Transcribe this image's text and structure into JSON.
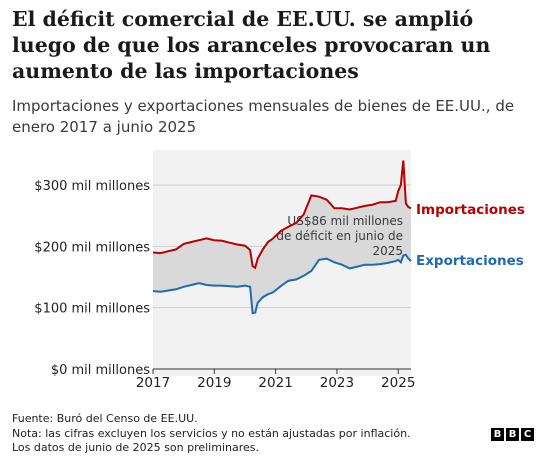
{
  "title": "El déficit comercial de EE.UU. se amplió luego de que los aranceles provocaran un aumento de las importaciones",
  "subtitle": "Importaciones y exportaciones mensuales de bienes de EE.UU., de enero 2017 a junio 2025",
  "footer": {
    "source": "Fuente: Buró del Censo de EE.UU.",
    "note": "Nota: las cifras excluyen los servicios y no están ajustadas por inflación.",
    "prelim": "Los datos de junio de 2025 son preliminares."
  },
  "brand": [
    "B",
    "B",
    "C"
  ],
  "chart_data": {
    "type": "line",
    "x_start": "2017-01",
    "x_end": "2025-06",
    "ylim": [
      0,
      350
    ],
    "yticks": [
      {
        "value": 0,
        "label": "$0 mil millones"
      },
      {
        "value": 100,
        "label": "$100 mil millones"
      },
      {
        "value": 200,
        "label": "$200 mil millones"
      },
      {
        "value": 300,
        "label": "$300 mil millones"
      }
    ],
    "xticks": [
      "2017",
      "2019",
      "2021",
      "2023",
      "2025"
    ],
    "series": [
      {
        "name": "Importaciones",
        "color": "#b80000",
        "x": [
          "2017-01",
          "2017-04",
          "2017-07",
          "2017-10",
          "2018-01",
          "2018-04",
          "2018-07",
          "2018-10",
          "2019-01",
          "2019-04",
          "2019-07",
          "2019-10",
          "2020-01",
          "2020-03",
          "2020-04",
          "2020-05",
          "2020-06",
          "2020-08",
          "2020-10",
          "2020-12",
          "2021-03",
          "2021-06",
          "2021-09",
          "2021-12",
          "2022-03",
          "2022-06",
          "2022-09",
          "2022-12",
          "2023-03",
          "2023-06",
          "2023-09",
          "2023-12",
          "2024-03",
          "2024-06",
          "2024-09",
          "2024-12",
          "2025-01",
          "2025-02",
          "2025-03",
          "2025-04",
          "2025-05",
          "2025-06"
        ],
        "values": [
          190,
          189,
          192,
          195,
          204,
          207,
          210,
          213,
          210,
          209,
          206,
          203,
          201,
          194,
          168,
          165,
          180,
          195,
          207,
          213,
          225,
          232,
          238,
          252,
          283,
          281,
          276,
          262,
          262,
          260,
          263,
          266,
          268,
          272,
          272,
          274,
          290,
          300,
          340,
          270,
          264,
          262
        ]
      },
      {
        "name": "Exportaciones",
        "color": "#1f6bb0",
        "x": [
          "2017-01",
          "2017-04",
          "2017-07",
          "2017-10",
          "2018-01",
          "2018-04",
          "2018-07",
          "2018-10",
          "2019-01",
          "2019-04",
          "2019-07",
          "2019-10",
          "2020-01",
          "2020-03",
          "2020-04",
          "2020-05",
          "2020-06",
          "2020-08",
          "2020-10",
          "2020-12",
          "2021-03",
          "2021-06",
          "2021-09",
          "2021-12",
          "2022-03",
          "2022-06",
          "2022-09",
          "2022-12",
          "2023-03",
          "2023-06",
          "2023-09",
          "2023-12",
          "2024-03",
          "2024-06",
          "2024-09",
          "2024-12",
          "2025-01",
          "2025-02",
          "2025-03",
          "2025-04",
          "2025-05",
          "2025-06"
        ],
        "values": [
          127,
          126,
          128,
          130,
          134,
          137,
          140,
          137,
          136,
          136,
          135,
          134,
          136,
          134,
          91,
          92,
          108,
          117,
          122,
          125,
          135,
          144,
          146,
          152,
          160,
          178,
          180,
          174,
          170,
          164,
          167,
          170,
          170,
          171,
          173,
          176,
          178,
          174,
          185,
          186,
          180,
          176
        ]
      }
    ],
    "annotation": {
      "lines": [
        "US$86 mil millones",
        "de déficit en junio de",
        "2025"
      ]
    }
  }
}
